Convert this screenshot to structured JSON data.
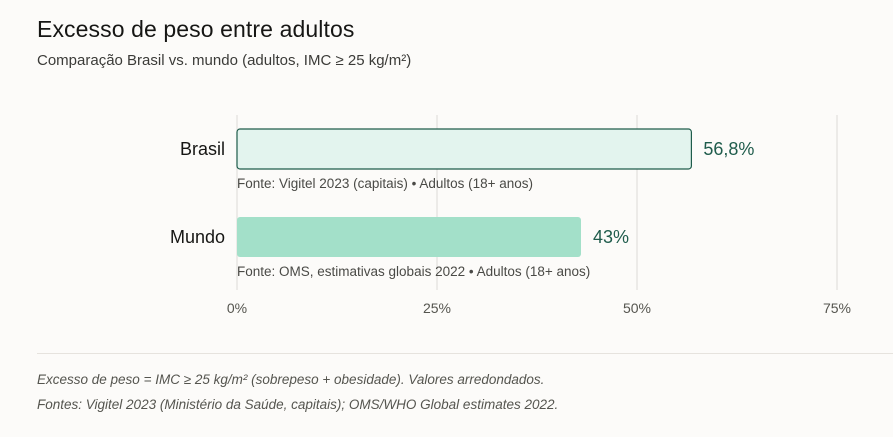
{
  "chart_data": {
    "type": "bar",
    "orientation": "horizontal",
    "title": "Excesso de peso entre adultos",
    "subtitle": "Comparação Brasil vs. mundo (adultos, IMC ≥ 25 kg/m²)",
    "categories": [
      "Brasil",
      "Mundo"
    ],
    "values": [
      56.8,
      43
    ],
    "value_labels": [
      "56,8%",
      "43%"
    ],
    "sources": [
      "Fonte: Vigitel 2023 (capitais) • Adultos (18+ anos)",
      "Fonte: OMS, estimativas globais 2022 • Adultos (18+ anos)"
    ],
    "xlim": [
      0,
      75
    ],
    "x_ticks": [
      0,
      25,
      50,
      75
    ],
    "x_tick_labels": [
      "0%",
      "25%",
      "50%",
      "75%"
    ],
    "grid": true,
    "colors": {
      "brasil_fill": "#e3f4ee",
      "brasil_stroke": "#1f5c4c",
      "mundo_fill": "#a3e0c9",
      "value_text": "#1f5c4c",
      "grid": "#e2e0dc"
    }
  },
  "notes": {
    "definition": "Excesso de peso = IMC ≥ 25 kg/m² (sobrepeso + obesidade). Valores arredondados.",
    "sources": "Fontes: Vigitel 2023 (Ministério da Saúde, capitais); OMS/WHO Global estimates 2022."
  }
}
